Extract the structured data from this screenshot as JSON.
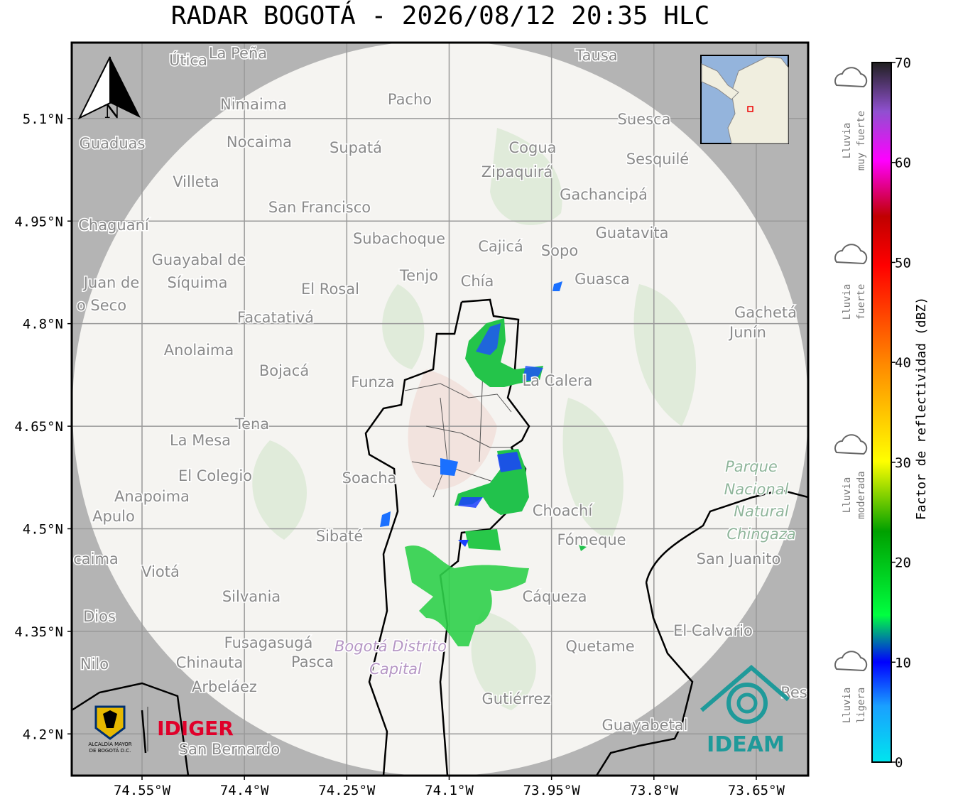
{
  "title": "RADAR BOGOTÁ - 2026/08/12 20:35 HLC",
  "map": {
    "xlim": [
      -74.653,
      -73.574
    ],
    "ylim": [
      4.139,
      5.211
    ],
    "xticks": [
      {
        "value": -74.55,
        "label": "74.55°W"
      },
      {
        "value": -74.4,
        "label": "74.4°W"
      },
      {
        "value": -74.25,
        "label": "74.25°W"
      },
      {
        "value": -74.1,
        "label": "74.1°W"
      },
      {
        "value": -73.95,
        "label": "73.95°W"
      },
      {
        "value": -73.8,
        "label": "73.8°W"
      },
      {
        "value": -73.65,
        "label": "73.65°W"
      }
    ],
    "yticks": [
      {
        "value": 5.1,
        "label": "5.1°N"
      },
      {
        "value": 4.95,
        "label": "4.95°N"
      },
      {
        "value": 4.8,
        "label": "4.8°N"
      },
      {
        "value": 4.65,
        "label": "4.65°N"
      },
      {
        "value": 4.5,
        "label": "4.5°N"
      },
      {
        "value": 4.35,
        "label": "4.35°N"
      },
      {
        "value": 4.2,
        "label": "4.2°N"
      }
    ],
    "grid": true,
    "north_label": "N",
    "places": [
      "Útica",
      "La Peña",
      "Tausa",
      "Pacho",
      "Nimaima",
      "Guaduas",
      "Nocaima",
      "Supatá",
      "Cogua",
      "Suesca",
      "Sesquilé",
      "Zipaquirá",
      "Villeta",
      "Gachancipá",
      "San Francisco",
      "Chaguaní",
      "Guatavita",
      "Subachoque",
      "Cajicá",
      "Sopo",
      "Guayabal de",
      "Síquima",
      "Juan de",
      "Tenjo",
      "Chía",
      "Guasca",
      "El Rosal",
      "o Seco",
      "Gachetá",
      "Facatativá",
      "Junín",
      "Anolaima",
      "Bojacá",
      "Funza",
      "La Calera",
      "Tena",
      "La Mesa",
      "Parque",
      "Nacional",
      "Natural",
      "Chingaza",
      "El Colegio",
      "Soacha",
      "Anapoima",
      "Apulo",
      "Choachí",
      "Sibaté",
      "Fómeque",
      "San Juanito",
      "caima",
      "Viotá",
      "Silvania",
      "Cáqueza",
      "Dios",
      "El Calvario",
      "Fusagasugá",
      "Bogotá Distrito",
      "Capital",
      "Quetame",
      "Nilo",
      "Chinauta",
      "Pasca",
      "Arbeláez",
      "Gutiérrez",
      "Guayabetal",
      "San Bernardo",
      "Res"
    ]
  },
  "colorbar": {
    "label": "Factor de reflectividad (dBZ)",
    "lim": [
      0,
      70
    ],
    "ticks": [
      0,
      10,
      20,
      30,
      40,
      50,
      60,
      70
    ]
  },
  "legend": [
    {
      "line1": "Lluvia",
      "line2": "muy fuerte"
    },
    {
      "line1": "Lluvia",
      "line2": "fuerte"
    },
    {
      "line1": "Lluvia",
      "line2": "moderada"
    },
    {
      "line1": "Lluvia",
      "line2": "ligera"
    }
  ],
  "logos": {
    "alcaldia_line1": "ALCALDÍA MAYOR",
    "alcaldia_line2": "DE BOGOTÁ D.C.",
    "idiger": "IDIGER",
    "ideam": "IDEAM"
  }
}
